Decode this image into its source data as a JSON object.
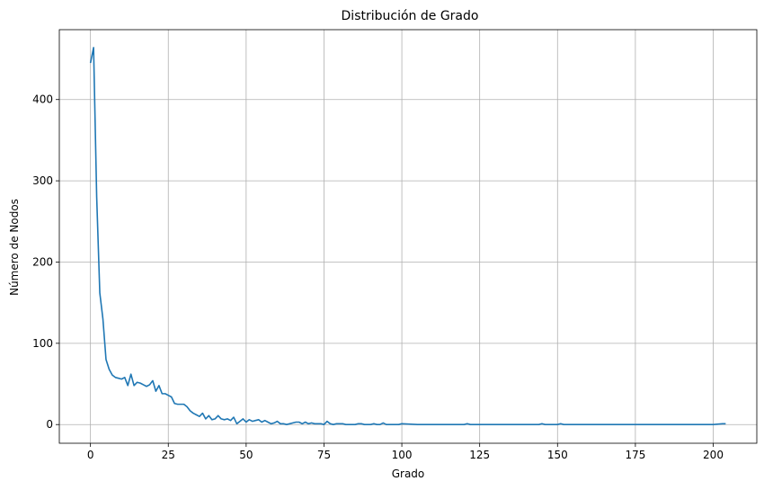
{
  "chart_data": {
    "type": "line",
    "title": "Distribución de Grado",
    "xlabel": "Grado",
    "ylabel": "Número de Nodos",
    "xlim": [
      -10,
      214
    ],
    "ylim": [
      -23,
      486
    ],
    "xticks": [
      0,
      25,
      50,
      75,
      100,
      125,
      150,
      175,
      200
    ],
    "yticks": [
      0,
      100,
      200,
      300,
      400
    ],
    "grid": true,
    "color": "#1f77b4",
    "series": [
      {
        "x": [
          0,
          1,
          2,
          3,
          4,
          5,
          6,
          7,
          8,
          9,
          10,
          11,
          12,
          13,
          14,
          15,
          16,
          17,
          18,
          19,
          20,
          21,
          22,
          23,
          24,
          25,
          26,
          27,
          28,
          29,
          30,
          31,
          32,
          33,
          34,
          35,
          36,
          37,
          38,
          39,
          40,
          41,
          42,
          43,
          44,
          45,
          46,
          47,
          48,
          49,
          50,
          51,
          52,
          53,
          54,
          55,
          56,
          57,
          58,
          59,
          60,
          61,
          62,
          63,
          64,
          65,
          66,
          67,
          68,
          69,
          70,
          71,
          72,
          73,
          74,
          75,
          76,
          77,
          78,
          79,
          80,
          81,
          82,
          83,
          84,
          85,
          86,
          87,
          88,
          89,
          90,
          91,
          92,
          93,
          94,
          95,
          96,
          97,
          98,
          99,
          100,
          105,
          110,
          115,
          120,
          121,
          122,
          125,
          130,
          135,
          140,
          144,
          145,
          146,
          150,
          151,
          152,
          155,
          160,
          170,
          180,
          190,
          200,
          203,
          204
        ],
        "values": [
          445,
          464,
          280,
          162,
          130,
          80,
          68,
          61,
          58,
          57,
          56,
          58,
          48,
          62,
          48,
          52,
          51,
          49,
          47,
          49,
          54,
          41,
          48,
          38,
          38,
          36,
          34,
          26,
          25,
          25,
          25,
          22,
          17,
          14,
          12,
          10,
          14,
          7,
          11,
          6,
          7,
          11,
          7,
          6,
          7,
          5,
          9,
          1,
          4,
          7,
          3,
          6,
          4,
          5,
          6,
          3,
          5,
          3,
          1,
          2,
          4,
          1,
          1,
          0,
          1,
          2,
          3,
          3,
          1,
          3,
          1,
          2,
          1,
          1,
          1,
          0,
          4,
          1,
          0,
          1,
          1,
          1,
          0,
          0,
          0,
          0,
          1,
          1,
          0,
          0,
          0,
          1,
          0,
          0,
          2,
          0,
          0,
          0,
          0,
          0,
          1,
          0,
          0,
          0,
          0,
          1,
          0,
          0,
          0,
          0,
          0,
          0,
          1,
          0,
          0,
          1,
          0,
          0,
          0,
          0,
          0,
          0,
          0,
          1,
          1
        ]
      }
    ]
  }
}
